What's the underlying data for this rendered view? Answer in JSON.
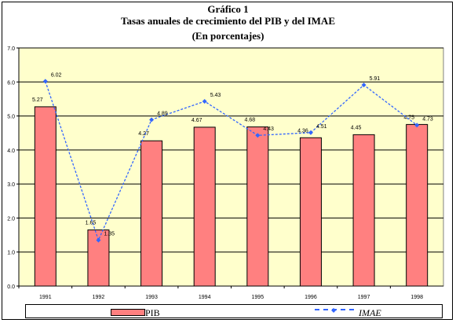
{
  "titles": {
    "line1": "Gráfico 1",
    "line2": "Tasas anuales de crecimiento del PIB y del IMAE",
    "line3": "(En porcentajes)"
  },
  "colors": {
    "plot_bg": "#ffffcc",
    "bar_fill": "#ff8080",
    "line_color": "#3366ff"
  },
  "chart_data": {
    "type": "bar",
    "categories": [
      "1991",
      "1992",
      "1993",
      "1994",
      "1995",
      "1996",
      "1997",
      "1998"
    ],
    "series": [
      {
        "name": "PIB",
        "type": "bar",
        "values": [
          5.27,
          1.65,
          4.27,
          4.67,
          4.68,
          4.36,
          4.45,
          4.75
        ],
        "labels": [
          "5.27",
          "1.65",
          "4.27",
          "4.67",
          "4.68",
          "4.36",
          "4.45",
          "4.75"
        ]
      },
      {
        "name": "IMAE",
        "type": "line",
        "values": [
          6.02,
          1.35,
          4.89,
          5.43,
          4.43,
          4.51,
          5.91,
          4.73
        ],
        "labels": [
          "6.02",
          "1.35",
          "4.89",
          "5.43",
          "4.43",
          "4.51",
          "5.91",
          "4.73"
        ]
      }
    ],
    "ylim": [
      0,
      7
    ],
    "yticks": [
      "0.0",
      "1.0",
      "2.0",
      "3.0",
      "4.0",
      "5.0",
      "6.0",
      "7.0"
    ],
    "grid": true,
    "legend": "bottom"
  }
}
